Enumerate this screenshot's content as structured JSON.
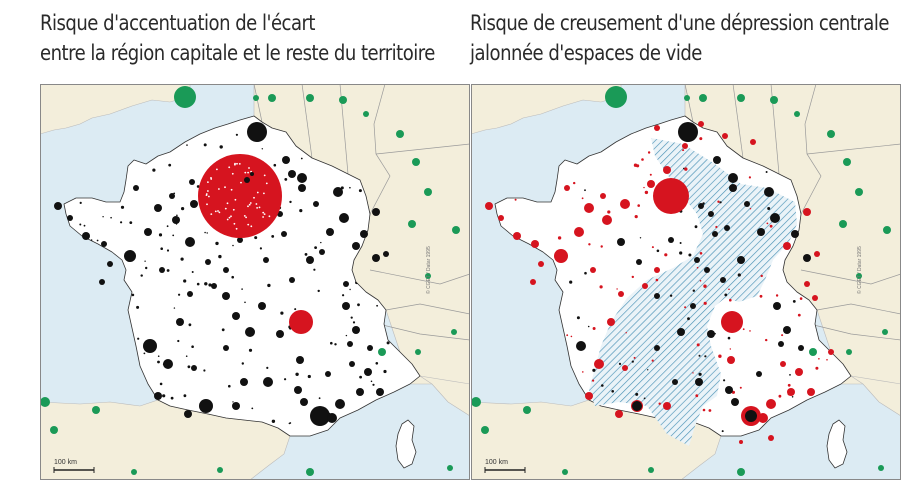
{
  "maps": [
    {
      "id": "left",
      "title_line1": "Risque d'accentuation de l'écart",
      "title_line2": "entre la région capitale et le reste du territoire",
      "scale_label": "100 km",
      "credit": "© CGET / Datar 1995"
    },
    {
      "id": "right",
      "title_line1": "Risque de creusement d'une dépression centrale",
      "title_line2": "jalonnée d'espaces de vide",
      "scale_label": "100 km",
      "credit": "© CGET / Datar 1995"
    }
  ],
  "colors": {
    "sea": "#dcebf3",
    "land_foreign": "#f3eedb",
    "france": "#ffffff",
    "city_black": "#111111",
    "city_red": "#d6141f",
    "foreign_city_green": "#1a9a57",
    "hatch": "#4b92b6"
  }
}
